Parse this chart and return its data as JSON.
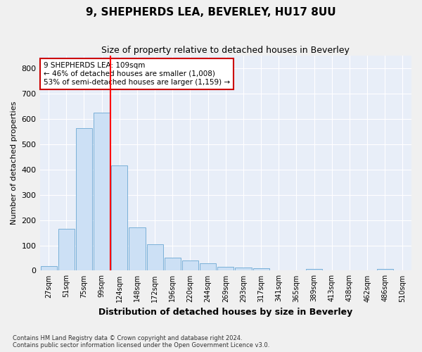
{
  "title": "9, SHEPHERDS LEA, BEVERLEY, HU17 8UU",
  "subtitle": "Size of property relative to detached houses in Beverley",
  "xlabel": "Distribution of detached houses by size in Beverley",
  "ylabel": "Number of detached properties",
  "bar_color": "#cce0f5",
  "bar_edgecolor": "#7ab0d8",
  "background_color": "#e8eef8",
  "grid_color": "#ffffff",
  "categories": [
    "27sqm",
    "51sqm",
    "75sqm",
    "99sqm",
    "124sqm",
    "148sqm",
    "172sqm",
    "196sqm",
    "220sqm",
    "244sqm",
    "269sqm",
    "293sqm",
    "317sqm",
    "341sqm",
    "365sqm",
    "389sqm",
    "413sqm",
    "438sqm",
    "462sqm",
    "486sqm",
    "510sqm"
  ],
  "values": [
    18,
    165,
    565,
    625,
    415,
    170,
    105,
    52,
    40,
    30,
    14,
    13,
    10,
    0,
    0,
    8,
    0,
    0,
    0,
    8,
    0
  ],
  "ylim": [
    0,
    850
  ],
  "yticks": [
    0,
    100,
    200,
    300,
    400,
    500,
    600,
    700,
    800
  ],
  "red_line_x": 3.5,
  "annotation_text": "9 SHEPHERDS LEA: 109sqm\n← 46% of detached houses are smaller (1,008)\n53% of semi-detached houses are larger (1,159) →",
  "annotation_box_color": "#ffffff",
  "annotation_box_edgecolor": "#cc0000",
  "footnote": "Contains HM Land Registry data © Crown copyright and database right 2024.\nContains public sector information licensed under the Open Government Licence v3.0.",
  "fig_facecolor": "#f0f0f0"
}
